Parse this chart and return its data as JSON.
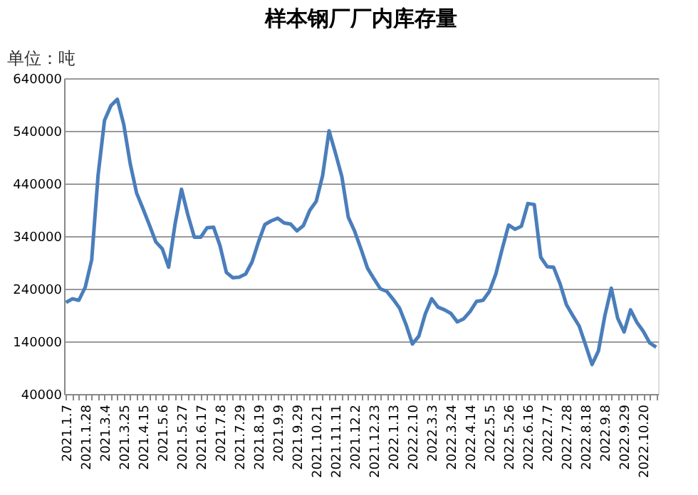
{
  "chart_data": {
    "type": "line",
    "title": "样本钢厂厂内库存量",
    "annotations": [
      "单位：吨"
    ],
    "categories": [
      "2021.1.7",
      null,
      null,
      "2021.1.28",
      null,
      null,
      "2021.3.4",
      null,
      null,
      "2021.3.25",
      null,
      null,
      "2021.4.15",
      null,
      null,
      "2021.5.6",
      null,
      null,
      "2021.5.27",
      null,
      null,
      "2021.6.17",
      null,
      null,
      "2021.7.8",
      null,
      null,
      "2021.7.29",
      null,
      null,
      "2021.8.19",
      null,
      null,
      "2021.9.9",
      null,
      null,
      "2021.9.29",
      null,
      null,
      "2021.10.21",
      null,
      null,
      "2021.11.11",
      null,
      null,
      "2021.12.2",
      null,
      null,
      "2021.12.23",
      null,
      null,
      "2022.1.13",
      null,
      null,
      "2022.2.10",
      null,
      null,
      "2022.3.3",
      null,
      null,
      "2022.3.24",
      null,
      null,
      "2022.4.14",
      null,
      null,
      "2022.5.5",
      null,
      null,
      "2022.5.26",
      null,
      null,
      "2022.6.16",
      null,
      null,
      "2022.7.7",
      null,
      null,
      "2022.7.28",
      null,
      null,
      "2022.8.18",
      null,
      null,
      "2022.9.8",
      null,
      null,
      "2022.9.29",
      null,
      null,
      "2022.10.20",
      null,
      null
    ],
    "series": [
      {
        "color": "#4a7ebb",
        "values": [
          214000,
          221000,
          218000,
          243000,
          295000,
          456000,
          560000,
          588000,
          600000,
          552000,
          478000,
          422000,
          392000,
          361000,
          329000,
          316000,
          281000,
          363000,
          429000,
          380000,
          338000,
          338000,
          356000,
          357000,
          322000,
          271000,
          261000,
          262000,
          268000,
          291000,
          329000,
          362000,
          369000,
          374000,
          365000,
          363000,
          350000,
          360000,
          389000,
          406000,
          455000,
          540000,
          498000,
          453000,
          376000,
          349000,
          315000,
          279000,
          259000,
          240000,
          235000,
          220000,
          203000,
          172000,
          135000,
          150000,
          192000,
          221000,
          205000,
          200000,
          193000,
          177000,
          183000,
          197000,
          216000,
          218000,
          235000,
          268000,
          316000,
          361000,
          353000,
          359000,
          402000,
          400000,
          300000,
          282000,
          281000,
          250000,
          210000,
          189000,
          169000,
          133000,
          96000,
          122000,
          189000,
          241000,
          184000,
          158000,
          200000,
          176000,
          159000,
          137000,
          129000
        ]
      }
    ],
    "ylim": [
      40000,
      640000
    ],
    "yticks": [
      40000,
      140000,
      240000,
      340000,
      440000,
      540000,
      640000
    ],
    "grid": "y"
  }
}
